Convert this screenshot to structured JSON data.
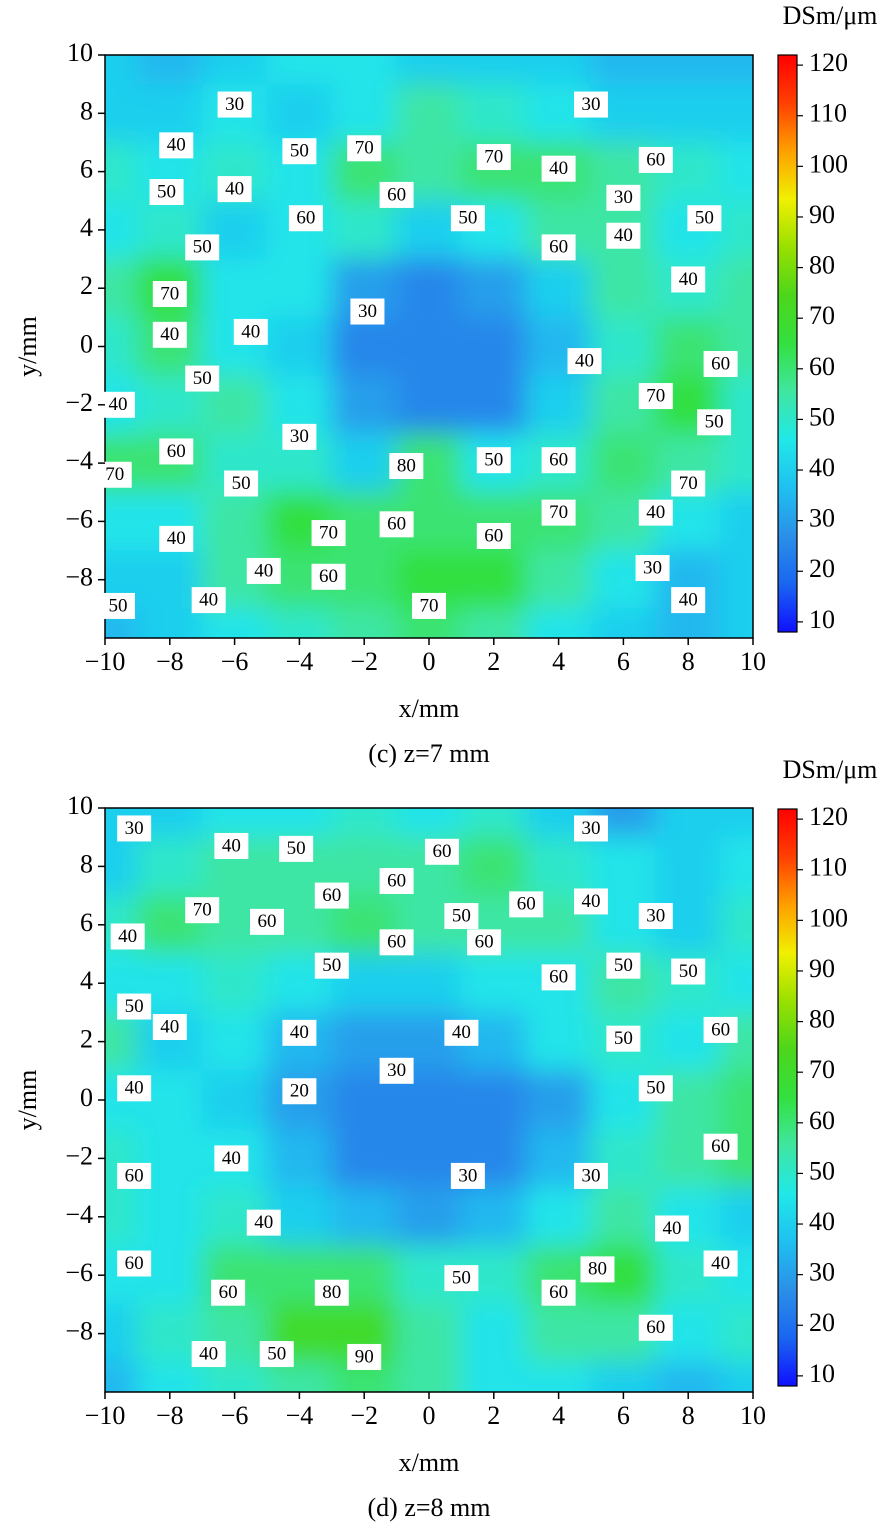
{
  "chart_data": [
    {
      "type": "contour",
      "title": "(c) z=7 mm",
      "x_label": "x/mm",
      "y_label": "y/mm",
      "colorbar_label": "DSm/μm",
      "x": [
        -10,
        -8,
        -6,
        -4,
        -2,
        0,
        2,
        4,
        6,
        8,
        10
      ],
      "y": [
        10,
        8,
        6,
        4,
        2,
        0,
        -2,
        -4,
        -6,
        -8,
        -10
      ],
      "z": [
        [
          40,
          35,
          40,
          45,
          45,
          40,
          40,
          40,
          35,
          35,
          35
        ],
        [
          40,
          40,
          45,
          40,
          45,
          55,
          50,
          45,
          40,
          40,
          40
        ],
        [
          50,
          45,
          50,
          45,
          60,
          55,
          60,
          60,
          55,
          50,
          45
        ],
        [
          45,
          50,
          40,
          45,
          50,
          40,
          45,
          55,
          55,
          45,
          50
        ],
        [
          55,
          65,
          45,
          45,
          30,
          25,
          30,
          40,
          55,
          50,
          55
        ],
        [
          50,
          60,
          45,
          40,
          25,
          25,
          25,
          35,
          50,
          60,
          55
        ],
        [
          45,
          50,
          55,
          45,
          30,
          25,
          25,
          40,
          55,
          65,
          50
        ],
        [
          60,
          60,
          50,
          50,
          40,
          60,
          45,
          50,
          60,
          55,
          50
        ],
        [
          45,
          45,
          55,
          65,
          60,
          60,
          60,
          60,
          55,
          45,
          40
        ],
        [
          40,
          40,
          55,
          60,
          60,
          65,
          65,
          55,
          45,
          35,
          40
        ],
        [
          35,
          40,
          45,
          50,
          55,
          60,
          55,
          45,
          40,
          35,
          40
        ]
      ],
      "xlim": [
        -10,
        10
      ],
      "ylim": [
        -10,
        10
      ],
      "xticks": [
        {
          "value": -10,
          "label": "−10"
        },
        {
          "value": -8,
          "label": "−8"
        },
        {
          "value": -6,
          "label": "−6"
        },
        {
          "value": -4,
          "label": "−4"
        },
        {
          "value": -2,
          "label": "−2"
        },
        0,
        2,
        4,
        6,
        8,
        10
      ],
      "yticks": [
        {
          "value": -8,
          "label": "−8"
        },
        {
          "value": -6,
          "label": "−6"
        },
        {
          "value": -4,
          "label": "−4"
        },
        {
          "value": -2,
          "label": "−2"
        },
        0,
        2,
        4,
        6,
        8,
        10
      ],
      "clim": [
        8,
        122
      ],
      "cticks": [
        10,
        20,
        30,
        40,
        50,
        60,
        70,
        80,
        90,
        100,
        110,
        120
      ],
      "colors": [
        "#1010ff",
        "#1a66f0",
        "#2b90e8",
        "#1fc0f0",
        "#20e8e8",
        "#40e6a0",
        "#33e040",
        "#4cd61a",
        "#99e000",
        "#f0f000",
        "#ffa000",
        "#ff4000",
        "#ff0000"
      ],
      "contour_labels": {
        "x": [
          -6,
          5,
          -7.8,
          -4,
          -2,
          2,
          4,
          7,
          -8.1,
          -6,
          -1,
          6,
          -3.8,
          1.2,
          8.5,
          -7,
          6,
          4,
          8,
          -8,
          -1.9,
          -8,
          -5.5,
          4.8,
          9,
          -7,
          7,
          -9.6,
          8.8,
          -4,
          -7.8,
          2,
          -0.7,
          4,
          -9.7,
          -5.8,
          8,
          4,
          7,
          -1,
          -3.1,
          2,
          -7.8,
          -5.1,
          -3.1,
          6.9,
          -6.8,
          -9.6,
          0,
          8
        ],
        "y": [
          8.3,
          8.3,
          6.9,
          6.7,
          6.8,
          6.5,
          6.1,
          6.4,
          5.3,
          5.4,
          5.2,
          5.1,
          4.4,
          4.4,
          4.4,
          3.4,
          3.8,
          3.4,
          2.3,
          1.8,
          1.2,
          0.4,
          0.5,
          -0.5,
          -0.6,
          -1.1,
          -1.7,
          -2,
          -2.6,
          -3.1,
          -3.6,
          -3.9,
          -4.1,
          -3.9,
          -4.4,
          -4.7,
          -4.7,
          -5.7,
          -5.7,
          -6.1,
          -6.4,
          -6.5,
          -6.6,
          -7.7,
          -7.9,
          -7.6,
          -8.7,
          -8.9,
          -8.9,
          -8.7
        ],
        "values": [
          30,
          30,
          40,
          50,
          70,
          70,
          40,
          60,
          50,
          40,
          60,
          30,
          60,
          50,
          50,
          50,
          40,
          60,
          40,
          70,
          30,
          40,
          40,
          40,
          60,
          50,
          70,
          40,
          50,
          30,
          60,
          50,
          80,
          60,
          70,
          50,
          70,
          70,
          40,
          60,
          70,
          60,
          40,
          40,
          60,
          30,
          40,
          50,
          70,
          40
        ]
      }
    },
    {
      "type": "contour",
      "title": "(d) z=8 mm",
      "x_label": "x/mm",
      "y_label": "y/mm",
      "colorbar_label": "DSm/μm",
      "x": [
        -10,
        -8,
        -6,
        -4,
        -2,
        0,
        2,
        4,
        6,
        8,
        10
      ],
      "y": [
        10,
        8,
        6,
        4,
        2,
        0,
        -2,
        -4,
        -6,
        -8,
        -10
      ],
      "z": [
        [
          40,
          40,
          45,
          45,
          50,
          45,
          50,
          40,
          30,
          40,
          40
        ],
        [
          40,
          50,
          55,
          55,
          55,
          55,
          60,
          50,
          45,
          40,
          45
        ],
        [
          50,
          60,
          55,
          55,
          60,
          55,
          55,
          55,
          45,
          40,
          50
        ],
        [
          45,
          45,
          50,
          45,
          40,
          40,
          45,
          45,
          55,
          50,
          45
        ],
        [
          55,
          40,
          45,
          35,
          30,
          30,
          35,
          45,
          50,
          45,
          55
        ],
        [
          45,
          45,
          40,
          30,
          25,
          25,
          25,
          30,
          45,
          55,
          60
        ],
        [
          50,
          45,
          45,
          35,
          25,
          25,
          25,
          35,
          50,
          55,
          60
        ],
        [
          50,
          45,
          50,
          40,
          35,
          30,
          35,
          45,
          55,
          45,
          40
        ],
        [
          45,
          45,
          60,
          60,
          60,
          50,
          50,
          60,
          65,
          50,
          45
        ],
        [
          40,
          50,
          55,
          70,
          70,
          55,
          45,
          55,
          55,
          45,
          50
        ],
        [
          35,
          45,
          50,
          55,
          60,
          55,
          45,
          45,
          40,
          35,
          40
        ]
      ],
      "xlim": [
        -10,
        10
      ],
      "ylim": [
        -10,
        10
      ],
      "xticks": [
        {
          "value": -10,
          "label": "−10"
        },
        {
          "value": -8,
          "label": "−8"
        },
        {
          "value": -6,
          "label": "−6"
        },
        {
          "value": -4,
          "label": "−4"
        },
        {
          "value": -2,
          "label": "−2"
        },
        0,
        2,
        4,
        6,
        8,
        10
      ],
      "yticks": [
        {
          "value": -8,
          "label": "−8"
        },
        {
          "value": -6,
          "label": "−6"
        },
        {
          "value": -4,
          "label": "−4"
        },
        {
          "value": -2,
          "label": "−2"
        },
        0,
        2,
        4,
        6,
        8,
        10
      ],
      "clim": [
        8,
        122
      ],
      "cticks": [
        10,
        20,
        30,
        40,
        50,
        60,
        70,
        80,
        90,
        100,
        110,
        120
      ],
      "colors": [
        "#1010ff",
        "#1a66f0",
        "#2b90e8",
        "#1fc0f0",
        "#20e8e8",
        "#40e6a0",
        "#33e040",
        "#4cd61a",
        "#99e000",
        "#f0f000",
        "#ffa000",
        "#ff4000",
        "#ff0000"
      ],
      "contour_labels": {
        "x": [
          -9.1,
          -6.1,
          -4.1,
          0.4,
          5,
          -1,
          -3,
          3,
          5,
          -7,
          1,
          7,
          -5,
          -9.3,
          -1,
          1.7,
          6,
          -3,
          8,
          4,
          -9.1,
          -8,
          -4,
          1,
          9,
          6,
          -1,
          7,
          -4,
          -9.1,
          -6.1,
          9,
          -9.1,
          1.2,
          5,
          -5.1,
          7.5,
          -9.1,
          5.2,
          9,
          -3,
          1,
          4,
          -6.2,
          7,
          -6.8,
          -4.7,
          -2
        ],
        "y": [
          9.3,
          8.7,
          8.6,
          8.5,
          9.3,
          7.5,
          7,
          6.7,
          6.8,
          6.5,
          6.3,
          6.3,
          6.1,
          5.6,
          5.4,
          5.4,
          4.6,
          4.6,
          4.4,
          4.2,
          3.2,
          2.5,
          2.3,
          2.3,
          2.4,
          2.1,
          1,
          0.4,
          0.3,
          0.4,
          -2,
          -1.6,
          -2.6,
          -2.6,
          -2.6,
          -4.2,
          -4.4,
          -5.6,
          -5.8,
          -5.6,
          -6.6,
          -6.1,
          -6.6,
          -6.6,
          -7.8,
          -8.7,
          -8.7,
          -8.8
        ],
        "values": [
          30,
          40,
          50,
          60,
          30,
          60,
          60,
          60,
          40,
          70,
          50,
          30,
          60,
          40,
          60,
          60,
          50,
          50,
          50,
          60,
          50,
          40,
          40,
          40,
          60,
          50,
          30,
          50,
          20,
          40,
          40,
          60,
          60,
          30,
          30,
          40,
          40,
          60,
          80,
          40,
          80,
          50,
          60,
          60,
          60,
          40,
          50,
          90
        ]
      }
    }
  ]
}
